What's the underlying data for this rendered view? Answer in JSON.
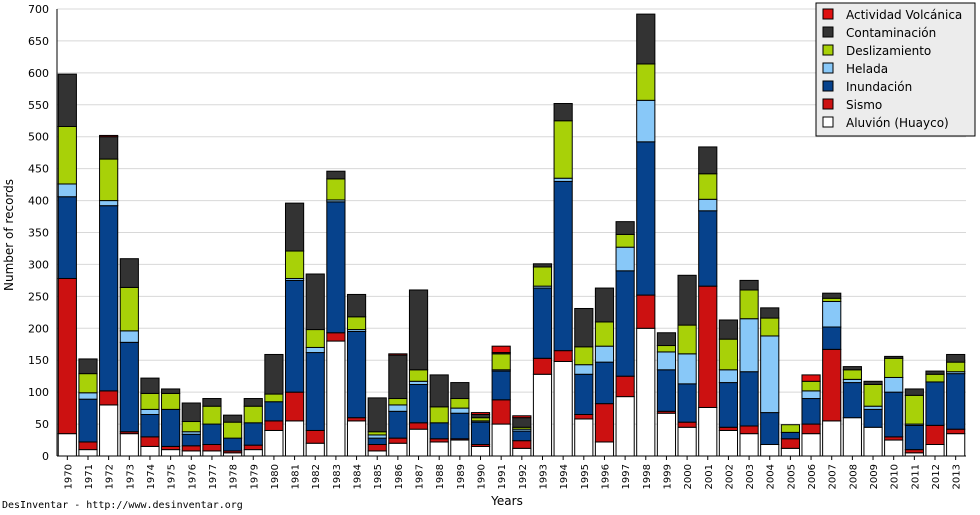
{
  "credit": "DesInventar - http://www.desinventar.org",
  "chart_data": {
    "type": "bar",
    "stacked": true,
    "title": "",
    "xlabel": "Years",
    "ylabel": "Number of records",
    "ylim": [
      0,
      700
    ],
    "yticks": [
      0,
      50,
      100,
      150,
      200,
      250,
      300,
      350,
      400,
      450,
      500,
      550,
      600,
      650,
      700
    ],
    "grid": true,
    "legend_position": "top-right",
    "categories": [
      "1970",
      "1971",
      "1972",
      "1973",
      "1974",
      "1975",
      "1976",
      "1977",
      "1978",
      "1979",
      "1980",
      "1981",
      "1982",
      "1983",
      "1984",
      "1985",
      "1986",
      "1987",
      "1988",
      "1989",
      "1990",
      "1991",
      "1992",
      "1993",
      "1994",
      "1995",
      "1996",
      "1997",
      "1998",
      "1999",
      "2000",
      "2001",
      "2002",
      "2003",
      "2004",
      "2005",
      "2006",
      "2007",
      "2008",
      "2009",
      "2010",
      "2011",
      "2012",
      "2013"
    ],
    "series": [
      {
        "name": "Aluvión (Huayco)",
        "color": "#ffffff",
        "values": [
          35,
          10,
          80,
          35,
          15,
          10,
          8,
          8,
          5,
          10,
          40,
          55,
          20,
          180,
          55,
          8,
          20,
          42,
          22,
          25,
          15,
          50,
          12,
          128,
          148,
          58,
          22,
          93,
          200,
          67,
          45,
          76,
          40,
          35,
          18,
          12,
          35,
          55,
          60,
          45,
          25,
          5,
          18,
          35
        ]
      },
      {
        "name": "Sismo",
        "color": "#cc1111",
        "values": [
          243,
          12,
          22,
          3,
          15,
          5,
          8,
          10,
          3,
          7,
          15,
          45,
          20,
          13,
          5,
          10,
          8,
          10,
          5,
          2,
          3,
          38,
          12,
          25,
          17,
          7,
          60,
          32,
          52,
          3,
          8,
          190,
          5,
          12,
          0,
          15,
          15,
          112,
          0,
          0,
          5,
          5,
          30,
          7
        ]
      },
      {
        "name": "Inundación",
        "color": "#06428c",
        "values": [
          128,
          67,
          290,
          140,
          35,
          58,
          18,
          32,
          20,
          35,
          30,
          175,
          122,
          205,
          135,
          10,
          42,
          60,
          25,
          40,
          35,
          45,
          15,
          110,
          265,
          63,
          65,
          165,
          240,
          65,
          60,
          118,
          70,
          85,
          50,
          10,
          40,
          35,
          55,
          28,
          70,
          38,
          68,
          87
        ]
      },
      {
        "name": "Helada",
        "color": "#88c8f8",
        "values": [
          20,
          10,
          8,
          18,
          8,
          0,
          4,
          0,
          0,
          0,
          0,
          3,
          8,
          3,
          3,
          5,
          10,
          5,
          0,
          8,
          2,
          2,
          3,
          3,
          5,
          15,
          25,
          37,
          65,
          28,
          47,
          18,
          20,
          83,
          120,
          0,
          12,
          40,
          5,
          5,
          23,
          2,
          0,
          3
        ]
      },
      {
        "name": "Deslizamiento",
        "color": "#a8d108",
        "values": [
          90,
          30,
          65,
          68,
          25,
          25,
          16,
          28,
          25,
          26,
          12,
          43,
          28,
          33,
          20,
          5,
          10,
          18,
          25,
          15,
          5,
          25,
          3,
          30,
          90,
          28,
          38,
          20,
          57,
          10,
          45,
          40,
          48,
          45,
          28,
          12,
          15,
          5,
          15,
          34,
          30,
          45,
          12,
          15
        ]
      },
      {
        "name": "Contaminación",
        "color": "#333333",
        "values": [
          82,
          23,
          35,
          45,
          24,
          7,
          29,
          12,
          11,
          12,
          62,
          75,
          87,
          12,
          35,
          53,
          68,
          125,
          50,
          25,
          5,
          2,
          15,
          5,
          27,
          60,
          53,
          20,
          78,
          20,
          78,
          42,
          30,
          15,
          16,
          0,
          0,
          8,
          5,
          5,
          3,
          10,
          5,
          12
        ]
      },
      {
        "name": "Actividad Volcánica",
        "color": "#e01010",
        "values": [
          0,
          0,
          2,
          0,
          0,
          0,
          0,
          0,
          0,
          0,
          0,
          0,
          0,
          0,
          0,
          0,
          2,
          0,
          0,
          0,
          3,
          10,
          3,
          0,
          0,
          0,
          0,
          0,
          0,
          0,
          0,
          0,
          0,
          0,
          0,
          0,
          10,
          0,
          0,
          0,
          0,
          0,
          0,
          0
        ]
      }
    ],
    "legend_order": [
      "Actividad Volcánica",
      "Contaminación",
      "Deslizamiento",
      "Helada",
      "Inundación",
      "Sismo",
      "Aluvión (Huayco)"
    ]
  }
}
